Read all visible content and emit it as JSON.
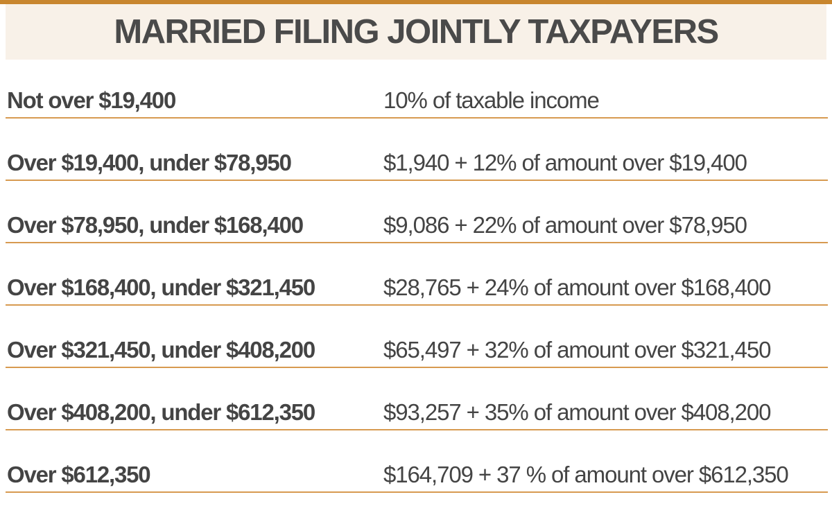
{
  "title": "MARRIED FILING JOINTLY TAXPAYERS",
  "colors": {
    "accent_rule": "#c8862e",
    "row_rule": "#d79a50",
    "title_band": "#f8f1e8",
    "text": "#444444"
  },
  "brackets": [
    {
      "range": "Not over $19,400",
      "rate": "10% of taxable income"
    },
    {
      "range": "Over $19,400, under $78,950",
      "rate": "$1,940 + 12% of amount over $19,400"
    },
    {
      "range": "Over $78,950, under $168,400",
      "rate": "$9,086 + 22% of amount over $78,950"
    },
    {
      "range": "Over $168,400, under $321,450",
      "rate": "$28,765 + 24% of amount over $168,400"
    },
    {
      "range": "Over $321,450, under $408,200",
      "rate": "$65,497 + 32% of amount over $321,450"
    },
    {
      "range": "Over $408,200, under $612,350",
      "rate": "$93,257 + 35% of amount over $408,200"
    },
    {
      "range": "Over $612,350",
      "rate": "$164,709 + 37 % of amount over $612,350"
    }
  ]
}
